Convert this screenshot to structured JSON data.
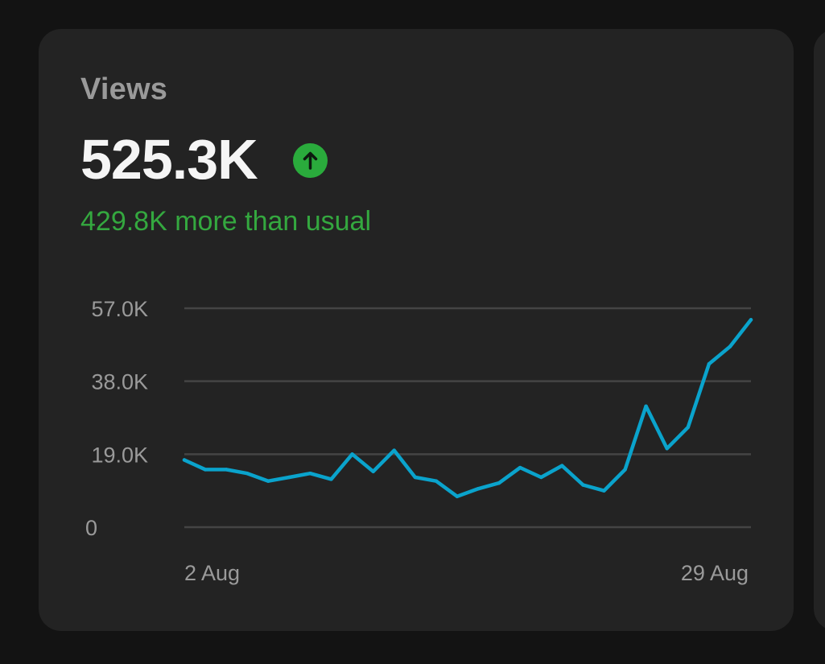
{
  "card": {
    "title": "Views",
    "value": "525.3K",
    "delta_text": "429.8K more than usual",
    "trend_icon": "arrow-up-circle-icon"
  },
  "colors": {
    "background": "#131313",
    "card": "#232323",
    "line": "#0aa3cc",
    "positive": "#2aab3c",
    "grid": "#444444",
    "muted_text": "#9a9a9a"
  },
  "chart_data": {
    "type": "line",
    "title": "",
    "xlabel": "",
    "ylabel": "",
    "ylim": [
      0,
      57000
    ],
    "yticks": [
      0,
      19000,
      38000,
      57000
    ],
    "ytick_labels": [
      "0",
      "19.0K",
      "38.0K",
      "57.0K"
    ],
    "xtick_labels": [
      "2 Aug",
      "29 Aug"
    ],
    "grid": true,
    "legend": false,
    "x": [
      "2 Aug",
      "3 Aug",
      "4 Aug",
      "5 Aug",
      "6 Aug",
      "7 Aug",
      "8 Aug",
      "9 Aug",
      "10 Aug",
      "11 Aug",
      "12 Aug",
      "13 Aug",
      "14 Aug",
      "15 Aug",
      "16 Aug",
      "17 Aug",
      "18 Aug",
      "19 Aug",
      "20 Aug",
      "21 Aug",
      "22 Aug",
      "23 Aug",
      "24 Aug",
      "25 Aug",
      "26 Aug",
      "27 Aug",
      "28 Aug",
      "29 Aug"
    ],
    "series": [
      {
        "values": [
          17500,
          15000,
          15000,
          14000,
          12000,
          13000,
          14000,
          12500,
          19000,
          14500,
          20000,
          13000,
          12000,
          8000,
          10000,
          11500,
          15500,
          13000,
          16000,
          11000,
          9500,
          15000,
          31500,
          20500,
          26000,
          42500,
          47000,
          54000
        ]
      }
    ]
  }
}
